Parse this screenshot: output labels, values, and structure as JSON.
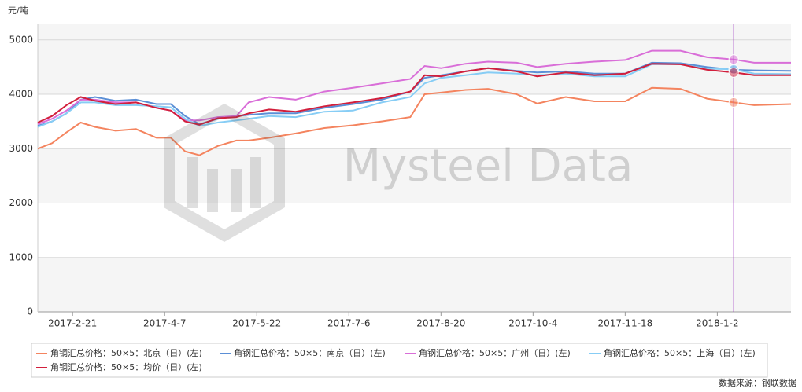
{
  "chart_data": {
    "type": "line",
    "y_unit": "元/吨",
    "watermark": "Mysteel Data",
    "source": "数据来源：钢联数据",
    "x": [
      "2017-2-4",
      "2017-2-11",
      "2017-2-18",
      "2017-2-25",
      "2017-3-4",
      "2017-3-14",
      "2017-3-24",
      "2017-4-3",
      "2017-4-10",
      "2017-4-17",
      "2017-4-24",
      "2017-5-3",
      "2017-5-12",
      "2017-5-18",
      "2017-5-28",
      "2017-6-10",
      "2017-6-24",
      "2017-7-8",
      "2017-7-22",
      "2017-8-5",
      "2017-8-12",
      "2017-8-20",
      "2017-9-1",
      "2017-9-12",
      "2017-9-26",
      "2017-10-6",
      "2017-10-20",
      "2017-11-3",
      "2017-11-18",
      "2017-12-1",
      "2017-12-15",
      "2017-12-28",
      "2018-1-10",
      "2018-1-20",
      "2018-2-7"
    ],
    "xlim": [
      "2017-2-4",
      "2018-2-7"
    ],
    "xticks": [
      "2017-2-21",
      "2017-4-7",
      "2017-5-22",
      "2017-7-6",
      "2017-8-20",
      "2017-10-4",
      "2017-11-18",
      "2018-1-2"
    ],
    "ylim": [
      0,
      5300
    ],
    "yticks": [
      0,
      1000,
      2000,
      3000,
      4000,
      5000
    ],
    "grid": true,
    "crosshair_x": "2018-1-10",
    "legend": "bottom",
    "series": [
      {
        "name": "角钢汇总价格：50×5：北京（日）(左)",
        "color": "#f4845f",
        "values": [
          3000,
          3100,
          3300,
          3480,
          3400,
          3330,
          3360,
          3200,
          3200,
          2950,
          2880,
          3050,
          3150,
          3150,
          3200,
          3280,
          3380,
          3430,
          3500,
          3580,
          4000,
          4030,
          4080,
          4100,
          4000,
          3830,
          3950,
          3870,
          3870,
          4120,
          4100,
          3920,
          3850,
          3800,
          3820
        ]
      },
      {
        "name": "角钢汇总价格：50×5：南京（日）(左)",
        "color": "#5b8fd6",
        "values": [
          3420,
          3500,
          3650,
          3900,
          3950,
          3880,
          3900,
          3820,
          3820,
          3600,
          3450,
          3550,
          3600,
          3620,
          3650,
          3650,
          3750,
          3820,
          3900,
          4050,
          4300,
          4350,
          4420,
          4480,
          4430,
          4400,
          4420,
          4380,
          4380,
          4580,
          4570,
          4500,
          4450,
          4440,
          4430
        ]
      },
      {
        "name": "角钢汇总价格：50×5：广州（日）(左)",
        "color": "#d96ed8",
        "values": [
          3450,
          3550,
          3700,
          3900,
          3900,
          3850,
          3850,
          3750,
          3700,
          3520,
          3520,
          3580,
          3600,
          3850,
          3950,
          3900,
          4050,
          4120,
          4200,
          4280,
          4520,
          4480,
          4560,
          4600,
          4580,
          4500,
          4560,
          4600,
          4630,
          4800,
          4800,
          4680,
          4640,
          4580,
          4580
        ]
      },
      {
        "name": "角钢汇总价格：50×5：上海（日）(左)",
        "color": "#87cdf5",
        "values": [
          3400,
          3500,
          3650,
          3850,
          3850,
          3800,
          3800,
          3780,
          3760,
          3550,
          3420,
          3480,
          3520,
          3550,
          3600,
          3580,
          3680,
          3700,
          3850,
          3950,
          4200,
          4300,
          4350,
          4400,
          4380,
          4350,
          4380,
          4330,
          4330,
          4550,
          4550,
          4470,
          4460,
          4380,
          4370
        ]
      },
      {
        "name": "角钢汇总价格：50×5：均价（日）(左)",
        "color": "#d21f3c",
        "values": [
          3480,
          3600,
          3800,
          3950,
          3880,
          3820,
          3850,
          3750,
          3700,
          3500,
          3440,
          3560,
          3580,
          3650,
          3720,
          3680,
          3780,
          3850,
          3930,
          4050,
          4350,
          4330,
          4420,
          4480,
          4420,
          4330,
          4400,
          4350,
          4380,
          4560,
          4550,
          4450,
          4400,
          4350,
          4350
        ]
      }
    ]
  }
}
